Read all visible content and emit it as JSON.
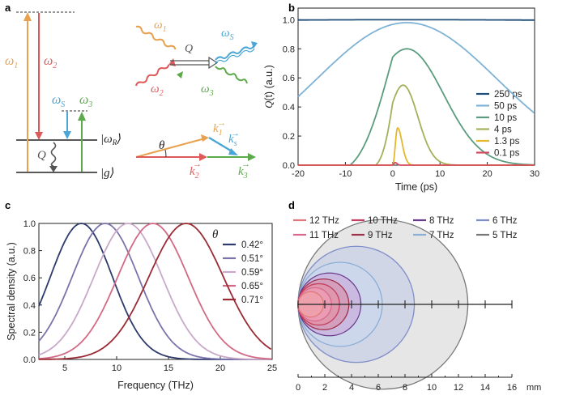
{
  "panels": {
    "a": {
      "label": "a",
      "omega_1": "ω",
      "omega_1_sub": "1",
      "omega_2": "ω",
      "omega_2_sub": "2",
      "omega_3": "ω",
      "omega_3_sub": "3",
      "omega_s": "ω",
      "omega_s_sub": "S",
      "omega_r": "|ω",
      "omega_r_sub": "R",
      "omega_r_close": "⟩",
      "ground": "|g⟩",
      "q": "Q",
      "theta": "θ",
      "k1": "k",
      "k1_sub": "1",
      "k2": "k",
      "k2_sub": "2",
      "k3": "k",
      "k3_sub": "3",
      "ks": "k",
      "ks_sub": "s",
      "colors": {
        "orange": "#e8a14e",
        "red": "#de5a5a",
        "green": "#5daa4b",
        "blue": "#4aa6d6",
        "gray": "#555555"
      }
    },
    "b": {
      "label": "b"
    },
    "c": {
      "label": "c"
    },
    "d": {
      "label": "d"
    }
  },
  "chart_data": [
    {
      "id": "b",
      "type": "line",
      "xlabel": "Time (ps)",
      "ylabel": "Q(t) (a.u.)",
      "ylabel_q": "Q",
      "ylabel_t": "(t)",
      "ylabel_unit": " (a.u.)",
      "xlim": [
        -20,
        30
      ],
      "ylim": [
        0,
        1.08
      ],
      "xticks": [
        -20,
        -10,
        0,
        10,
        20,
        30
      ],
      "xtick_labels": [
        "-20",
        "-10",
        "0",
        "10",
        "20",
        "30"
      ],
      "yticks": [
        0.0,
        0.2,
        0.4,
        0.6,
        0.8,
        1.0
      ],
      "ytick_labels": [
        "0.0",
        "0.2",
        "0.4",
        "0.6",
        "0.8",
        "1.0"
      ],
      "legend": "right",
      "series": [
        {
          "name": "250 ps",
          "color": "#1f4e79",
          "peak": 1.0,
          "tau": 250,
          "t0": 3
        },
        {
          "name": "50 ps",
          "color": "#7fb3d6",
          "peak": 0.98,
          "tau": 50,
          "t0": 3
        },
        {
          "name": "10 ps",
          "color": "#5b9c7e",
          "peak": 0.8,
          "tau": 10,
          "t0": 3
        },
        {
          "name": "4 ps",
          "color": "#a0b25a",
          "peak": 0.55,
          "tau": 4,
          "t0": 2.2
        },
        {
          "name": "1.3 ps",
          "color": "#e6b62e",
          "peak": 0.26,
          "tau": 1.3,
          "t0": 1.0
        },
        {
          "name": "0.1 ps",
          "color": "#d24a5e",
          "peak": 0.02,
          "tau": 0.1,
          "t0": 0.5
        }
      ]
    },
    {
      "id": "c",
      "type": "line",
      "xlabel": "Frequency (THz)",
      "ylabel": "Spectral density (a.u.)",
      "xlim": [
        2.5,
        25
      ],
      "ylim": [
        0,
        1.0
      ],
      "xticks": [
        5,
        10,
        15,
        20,
        25
      ],
      "xtick_labels": [
        "5",
        "10",
        "15",
        "20",
        "25"
      ],
      "yticks": [
        0.0,
        0.2,
        0.4,
        0.6,
        0.8,
        1.0
      ],
      "ytick_labels": [
        "0.0",
        "0.2",
        "0.4",
        "0.6",
        "0.8",
        "1.0"
      ],
      "legend_title": "θ",
      "series": [
        {
          "name": "0.42°",
          "color": "#2e3a6b",
          "center": 6.6,
          "sigma": 3.0
        },
        {
          "name": "0.51°",
          "color": "#7a74ab",
          "center": 8.9,
          "sigma": 3.2
        },
        {
          "name": "0.59°",
          "color": "#c9a9c9",
          "center": 11.1,
          "sigma": 3.3
        },
        {
          "name": "0.65°",
          "color": "#d36a85",
          "center": 13.5,
          "sigma": 3.4
        },
        {
          "name": "0.71°",
          "color": "#9c2a34",
          "center": 16.7,
          "sigma": 3.6
        }
      ]
    },
    {
      "id": "d",
      "type": "scatter",
      "xlabel": "mm",
      "xlim": [
        0,
        16
      ],
      "xticks": [
        0,
        2,
        4,
        6,
        8,
        10,
        12,
        14,
        16
      ],
      "xtick_labels": [
        "0",
        "2",
        "4",
        "6",
        "8",
        "10",
        "12",
        "14",
        "16"
      ],
      "series": [
        {
          "name": "12 THz",
          "color": "#f2a5a5",
          "edge": "#e07a7a",
          "diameter": 1.9
        },
        {
          "name": "11 THz",
          "color": "#f0a0b8",
          "edge": "#d86a8e",
          "diameter": 2.5
        },
        {
          "name": "10 THz",
          "color": "#e88fa0",
          "edge": "#c2405e",
          "diameter": 3.1
        },
        {
          "name": "9 THz",
          "color": "#dd8aa0",
          "edge": "#a0304a",
          "diameter": 3.8
        },
        {
          "name": "8 THz",
          "color": "#c9a0d8",
          "edge": "#6a3a8a",
          "diameter": 4.7
        },
        {
          "name": "7 THz",
          "color": "#c8d8ee",
          "edge": "#8aaed6",
          "diameter": 6.3
        },
        {
          "name": "6 THz",
          "color": "#bfc8e8",
          "edge": "#7f8fc8",
          "diameter": 8.7
        },
        {
          "name": "5 THz",
          "color": "#d2d2d2",
          "edge": "#777777",
          "diameter": 12.7
        }
      ]
    }
  ]
}
